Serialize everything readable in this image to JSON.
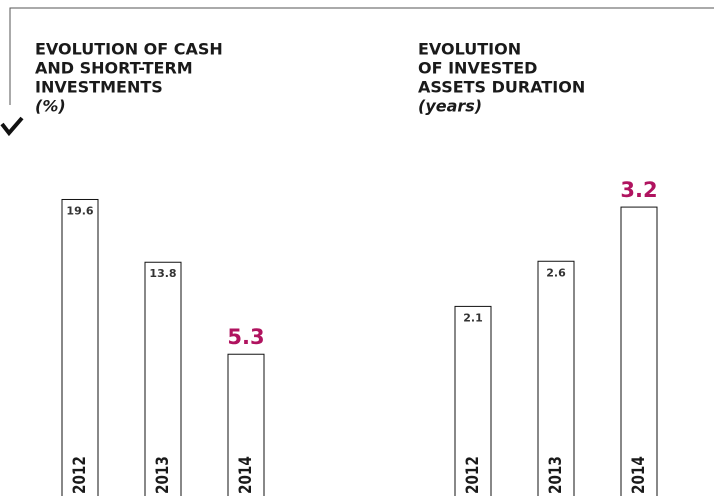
{
  "chart_data": [
    {
      "type": "bar",
      "title": [
        "EVOLUTION OF CASH",
        "AND SHORT-TERM",
        "INVESTMENTS"
      ],
      "subtitle": "(%)",
      "categories": [
        "2012",
        "2013",
        "2014"
      ],
      "values": [
        19.6,
        13.8,
        5.3
      ],
      "label_colors": [
        "#333333",
        "#333333",
        "#b0135f"
      ],
      "ylim": [
        -7.8,
        21.4
      ]
    },
    {
      "type": "bar",
      "title": [
        "EVOLUTION",
        "OF INVESTED",
        "ASSETS DURATION"
      ],
      "subtitle": "(years)",
      "categories": [
        "2012",
        "2013",
        "2014"
      ],
      "values": [
        2.1,
        2.6,
        3.2
      ],
      "label_colors": [
        "#333333",
        "#333333",
        "#b0135f"
      ],
      "ylim": [
        0,
        3.5
      ]
    }
  ]
}
